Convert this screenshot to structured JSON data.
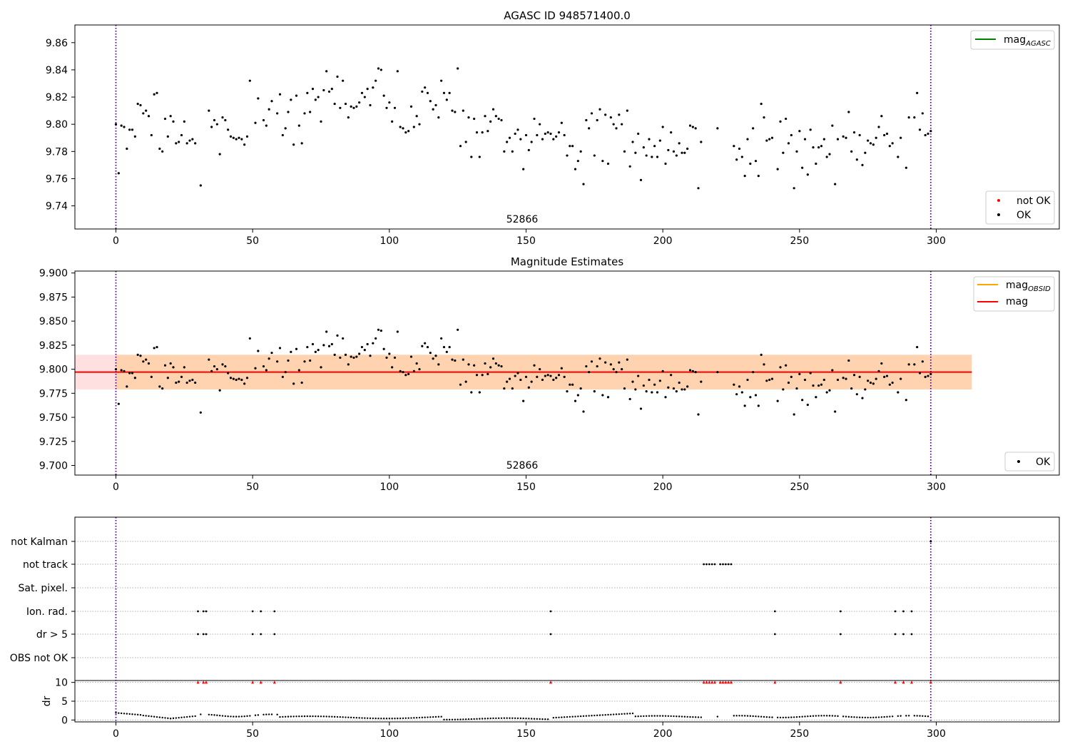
{
  "chart_data": [
    {
      "type": "scatter",
      "title": "AGASC ID 948571400.0",
      "annotation": "52866",
      "xlim": [
        -15,
        345
      ],
      "ylim": [
        9.723,
        9.873
      ],
      "xticks": [
        0,
        50,
        100,
        150,
        200,
        250,
        300
      ],
      "yticks": [
        9.74,
        9.76,
        9.78,
        9.8,
        9.82,
        9.84,
        9.86
      ],
      "ytick_labels": [
        "9.74",
        "9.76",
        "9.78",
        "9.80",
        "9.82",
        "9.84",
        "9.86"
      ],
      "vlines": [
        0,
        298
      ],
      "legend_top": {
        "label_base": "mag",
        "label_sub": "AGASC",
        "color": "#008000"
      },
      "legend_bottom": [
        {
          "label": "not OK",
          "color": "#ff0000"
        },
        {
          "label": "OK",
          "color": "#000000"
        }
      ]
    },
    {
      "type": "scatter",
      "title": "Magnitude Estimates",
      "annotation": "52866",
      "xlim": [
        -15,
        345
      ],
      "ylim": [
        9.69,
        9.902
      ],
      "xticks": [
        0,
        50,
        100,
        150,
        200,
        250,
        300
      ],
      "yticks": [
        9.7,
        9.725,
        9.75,
        9.775,
        9.8,
        9.825,
        9.85,
        9.875,
        9.9
      ],
      "ytick_labels": [
        "9.700",
        "9.725",
        "9.750",
        "9.775",
        "9.800",
        "9.825",
        "9.850",
        "9.875",
        "9.900"
      ],
      "vlines": [
        0,
        298
      ],
      "mag": 9.797,
      "mag_band": [
        9.779,
        9.815
      ],
      "band_x": [
        -15,
        313
      ],
      "obsid_band_x": [
        0,
        313
      ],
      "legend_top": [
        {
          "label_base": "mag",
          "label_sub": "OBSID",
          "color": "#ffa500"
        },
        {
          "label_base": "mag",
          "label_sub": "",
          "color": "#ff0000"
        }
      ],
      "legend_bottom": [
        {
          "label": "OK",
          "color": "#000000"
        }
      ]
    },
    {
      "type": "scatter",
      "xlim": [
        -15,
        345
      ],
      "xticks": [
        0,
        50,
        100,
        150,
        200,
        250,
        300
      ],
      "flag_categories": [
        "not Kalman",
        "not track",
        "Sat. pixel.",
        "Ion. rad.",
        "dr > 5",
        "OBS not OK"
      ],
      "flag_points": {
        "not Kalman": [
          298
        ],
        "not track": [
          215,
          216,
          217,
          218,
          219,
          221,
          222,
          223,
          224,
          225
        ],
        "Sat. pixel.": [],
        "Ion. rad.": [
          30,
          32,
          33,
          50,
          53,
          58,
          159,
          241,
          265,
          285,
          288,
          291
        ],
        "dr > 5": [
          30,
          32,
          33,
          50,
          53,
          58,
          159,
          241,
          265,
          285,
          288,
          291
        ],
        "OBS not OK": []
      },
      "dr_ylabel": "dr",
      "dr_ylim": [
        -0.5,
        10.5
      ],
      "dr_yticks": [
        0,
        5,
        10
      ],
      "dr_ytick_labels": [
        "0",
        "5",
        "10"
      ],
      "dr_clipped_x": [
        30,
        32,
        33,
        50,
        53,
        58,
        159,
        215,
        216,
        217,
        218,
        219,
        221,
        222,
        223,
        224,
        225,
        241,
        265,
        285,
        288,
        291,
        298
      ]
    }
  ]
}
